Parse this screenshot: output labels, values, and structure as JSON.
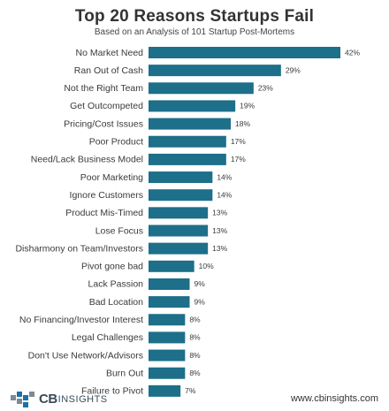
{
  "chart_data": {
    "type": "bar",
    "orientation": "horizontal",
    "title": "Top 20 Reasons Startups Fail",
    "subtitle": "Based on an Analysis of 101 Startup Post-Mortems",
    "categories": [
      "No Market Need",
      "Ran Out of Cash",
      "Not the Right Team",
      "Get Outcompeted",
      "Pricing/Cost Issues",
      "Poor Product",
      "Need/Lack Business Model",
      "Poor Marketing",
      "Ignore Customers",
      "Product Mis-Timed",
      "Lose Focus",
      "Disharmony on Team/Investors",
      "Pivot gone bad",
      "Lack Passion",
      "Bad Location",
      "No Financing/Investor Interest",
      "Legal Challenges",
      "Don't Use Network/Advisors",
      "Burn Out",
      "Failure to Pivot"
    ],
    "values": [
      42,
      29,
      23,
      19,
      18,
      17,
      17,
      14,
      14,
      13,
      13,
      13,
      10,
      9,
      9,
      8,
      8,
      8,
      8,
      7
    ],
    "value_labels": [
      "42%",
      "29%",
      "23%",
      "19%",
      "18%",
      "17%",
      "17%",
      "14%",
      "14%",
      "13%",
      "13%",
      "13%",
      "10%",
      "9%",
      "9%",
      "8%",
      "8%",
      "8%",
      "8%",
      "7%"
    ],
    "xlim": [
      0,
      42
    ],
    "grid": false,
    "legend": "none",
    "bar_color": "#1d6f8a"
  },
  "footer": {
    "logo_strong": "CB",
    "logo_light": "INSIGHTS",
    "url": "www.cbinsights.com"
  },
  "colors": {
    "bar": "#1d6f8a",
    "logo_blue": "#1f6fa8",
    "logo_gray": "#7a8a96"
  }
}
